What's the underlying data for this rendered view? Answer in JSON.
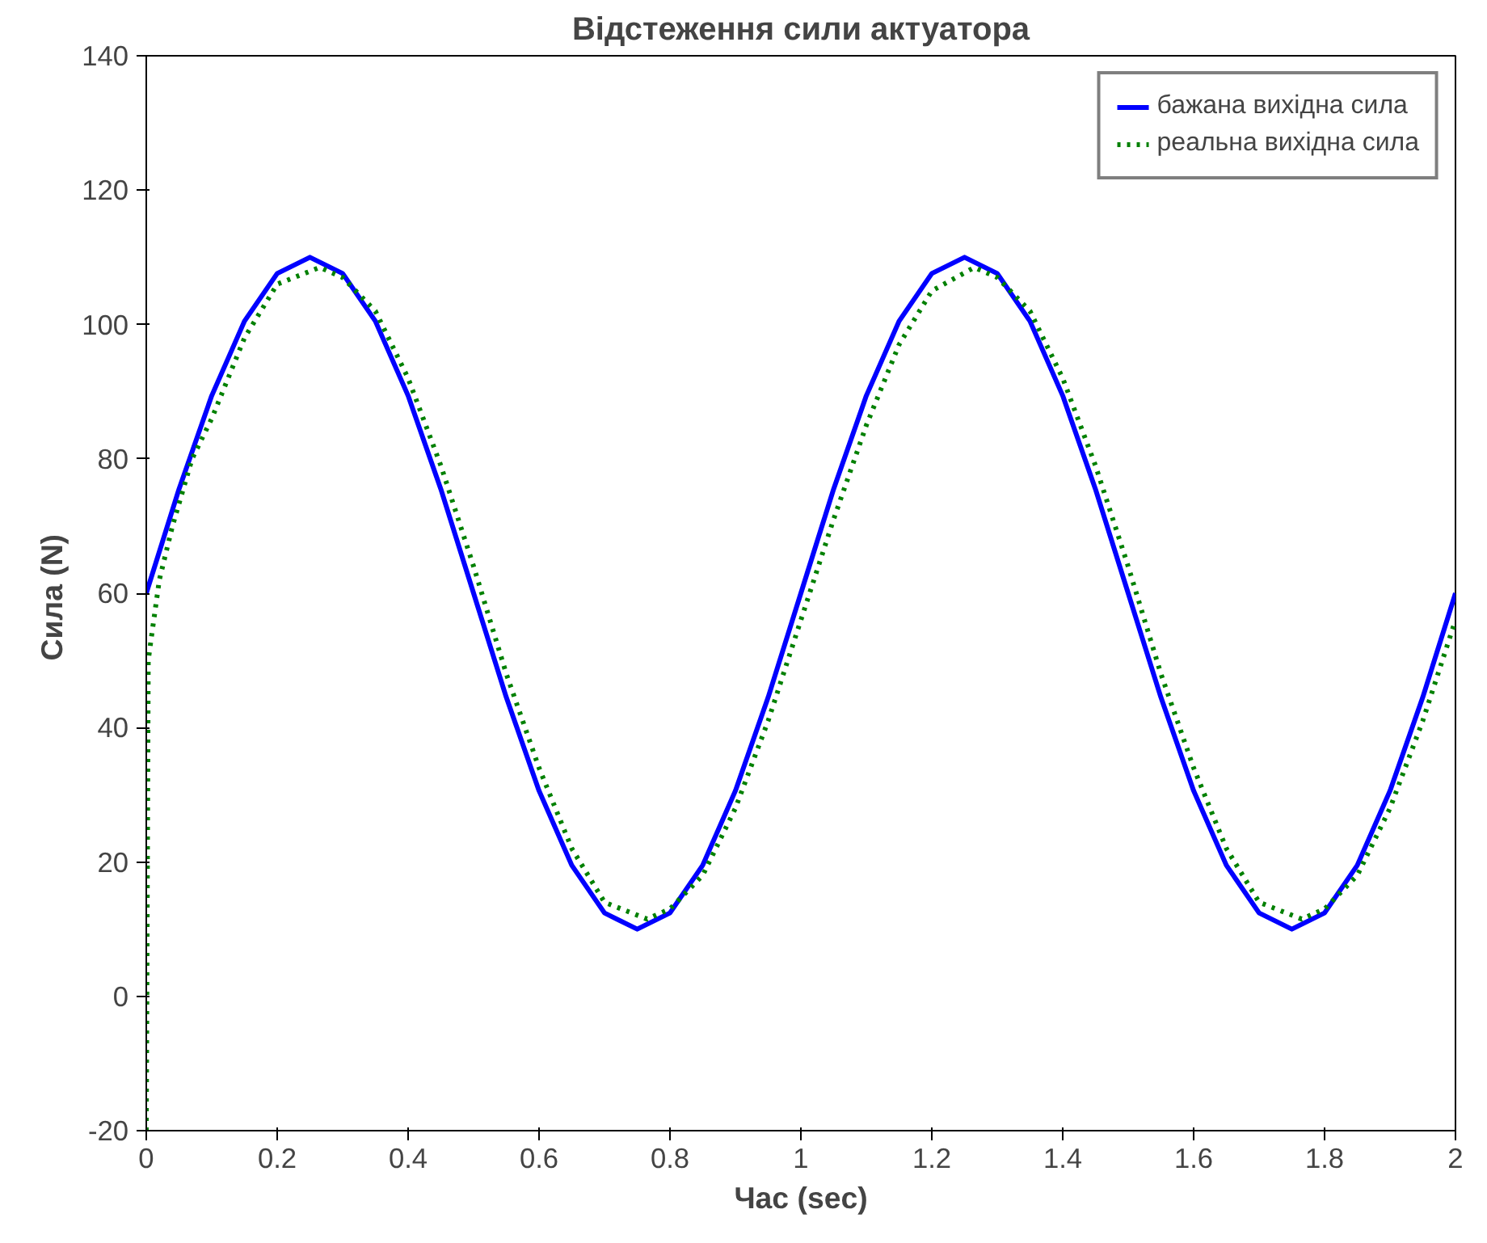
{
  "chart_data": {
    "type": "line",
    "title": "Відстеження сили актуатора",
    "xlabel": "Час (sec)",
    "ylabel": "Сила  (N)",
    "xlim": [
      0,
      2
    ],
    "ylim": [
      -20,
      140
    ],
    "xticks": [
      0,
      0.2,
      0.4,
      0.6,
      0.8,
      1,
      1.2,
      1.4,
      1.6,
      1.8,
      2
    ],
    "yticks": [
      -20,
      0,
      20,
      40,
      60,
      80,
      100,
      120,
      140
    ],
    "grid": false,
    "legend": "top right",
    "series": [
      {
        "name": "бажана вихідна сила",
        "color": "#0000ff",
        "line_style": "solid",
        "x": [
          0,
          0.05,
          0.1,
          0.15,
          0.2,
          0.25,
          0.3,
          0.35,
          0.4,
          0.45,
          0.5,
          0.55,
          0.6,
          0.65,
          0.7,
          0.75,
          0.8,
          0.85,
          0.9,
          0.95,
          1,
          1.05,
          1.1,
          1.15,
          1.2,
          1.25,
          1.3,
          1.35,
          1.4,
          1.45,
          1.5,
          1.55,
          1.6,
          1.65,
          1.7,
          1.75,
          1.8,
          1.85,
          1.9,
          1.95,
          2
        ],
        "values": [
          60,
          75.5,
          89.4,
          100.5,
          107.6,
          110,
          107.6,
          100.5,
          89.4,
          75.5,
          60,
          44.5,
          30.6,
          19.5,
          12.4,
          10,
          12.4,
          19.5,
          30.6,
          44.5,
          60,
          75.5,
          89.4,
          100.5,
          107.6,
          110,
          107.6,
          100.5,
          89.4,
          75.5,
          60,
          44.5,
          30.6,
          19.5,
          12.4,
          10,
          12.4,
          19.5,
          30.6,
          44.5,
          60
        ]
      },
      {
        "name": "реальна вихідна сила",
        "color": "#008000",
        "line_style": "dotted",
        "x": [
          0,
          0.003,
          0.01,
          0.02,
          0.04,
          0.07,
          0.1,
          0.15,
          0.2,
          0.265,
          0.3,
          0.35,
          0.4,
          0.45,
          0.5,
          0.55,
          0.6,
          0.65,
          0.7,
          0.765,
          0.8,
          0.85,
          0.9,
          0.95,
          1,
          1.05,
          1.1,
          1.15,
          1.2,
          1.265,
          1.3,
          1.35,
          1.4,
          1.45,
          1.5,
          1.55,
          1.6,
          1.65,
          1.7,
          1.765,
          1.8,
          1.85,
          1.9,
          1.95,
          2
        ],
        "values": [
          -20,
          50,
          55,
          62,
          70,
          80,
          86,
          98,
          106,
          108.5,
          107,
          102,
          92,
          79,
          64,
          48,
          34,
          22,
          14,
          11.5,
          13,
          18,
          28,
          41,
          56,
          71,
          85,
          97,
          105,
          108.5,
          107,
          102,
          92,
          79,
          64,
          48,
          34,
          22,
          14,
          11.5,
          13,
          18,
          28,
          41,
          56
        ]
      }
    ]
  }
}
